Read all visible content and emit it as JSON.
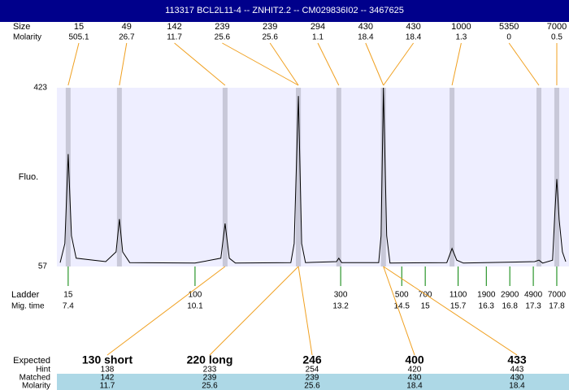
{
  "header": {
    "title": "113317  BCL2L11-4 -- ZNHIT2.2 -- CM029836I02 -- 3467625"
  },
  "chart_data": {
    "type": "electropherogram",
    "ylabel": "Fluo.",
    "ylim": [
      57,
      423
    ],
    "yticks": [
      57,
      423
    ],
    "xlim": [
      7.16,
      18.06
    ],
    "trace": {
      "color": "#000000",
      "x": [
        7.23,
        7.33,
        7.4,
        7.47,
        7.57,
        8.2,
        8.42,
        8.49,
        8.56,
        8.71,
        10.1,
        10.65,
        10.74,
        10.83,
        10.96,
        12.14,
        12.21,
        12.3,
        12.37,
        12.45,
        13.11,
        13.16,
        13.22,
        14.01,
        14.06,
        14.11,
        14.18,
        14.25,
        15.46,
        15.57,
        15.67,
        15.81,
        17.33,
        17.42,
        17.5,
        17.71,
        17.76,
        17.8,
        17.85,
        17.92,
        17.99
      ],
      "values": [
        65,
        104,
        287,
        120,
        74,
        67,
        87,
        154,
        87,
        65,
        64,
        74,
        145,
        74,
        64,
        65,
        104,
        406,
        104,
        65,
        67,
        74,
        65,
        65,
        120,
        423,
        120,
        64,
        65,
        94,
        70,
        64,
        67,
        70,
        64,
        70,
        170,
        236,
        153,
        87,
        67
      ]
    },
    "peaks": {
      "size_label": "Size",
      "molarity_label": "Molarity",
      "x": [
        7.4,
        8.49,
        10.74,
        12.3,
        12.3,
        13.16,
        14.11,
        14.11,
        15.57,
        17.42,
        17.8
      ],
      "sizes": [
        15,
        49,
        142,
        239,
        239,
        294,
        430,
        430,
        1000,
        5350,
        7000
      ],
      "molarity": [
        505.1,
        26.7,
        11.7,
        25.6,
        25.6,
        1.1,
        18.4,
        18.4,
        1.3,
        0,
        0.5
      ]
    },
    "ladder": {
      "label": "Ladder",
      "time_label": "Mig. time",
      "sizes": [
        15,
        100,
        300,
        500,
        700,
        1100,
        1900,
        2900,
        4900,
        7000
      ],
      "mig_times": [
        7.4,
        10.1,
        13.2,
        14.5,
        15,
        15.7,
        16.3,
        16.8,
        17.3,
        17.8
      ]
    },
    "expected": {
      "label": "Expected",
      "hint_label": "Hint",
      "matched_label": "Matched",
      "molarity_label": "Molarity",
      "names": [
        "130 short",
        "220 long",
        "246",
        "400",
        "433"
      ],
      "hints": [
        138,
        233,
        254,
        420,
        443
      ],
      "matched": [
        142,
        239,
        239,
        430,
        430
      ],
      "molarity": [
        11.7,
        25.6,
        25.6,
        18.4,
        18.4
      ]
    }
  }
}
